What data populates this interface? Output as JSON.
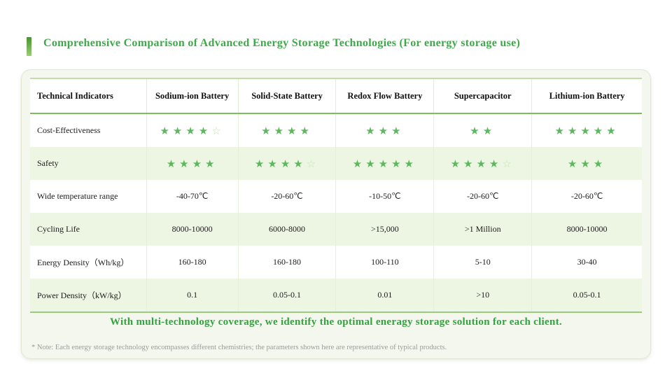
{
  "title": "Comprehensive Comparison of Advanced Energy Storage Technologies (For energy storage use)",
  "table": {
    "columns": [
      "Technical Indicators",
      "Sodium-ion Battery",
      "Solid-State Battery",
      "Redox Flow Battery",
      "Supercapacitor",
      "Lithium-ion Battery"
    ],
    "rows": [
      {
        "label": "Cost-Effectiveness",
        "type": "stars",
        "stars": [
          [
            4,
            1
          ],
          [
            4,
            0
          ],
          [
            3,
            0
          ],
          [
            2,
            0
          ],
          [
            5,
            0
          ]
        ]
      },
      {
        "label": "Safety",
        "type": "stars",
        "stars": [
          [
            4,
            0
          ],
          [
            4,
            1
          ],
          [
            5,
            0
          ],
          [
            4,
            1
          ],
          [
            3,
            0
          ]
        ]
      },
      {
        "label": "Wide temperature range",
        "type": "text",
        "values": [
          "-40-70℃",
          "-20-60℃",
          "-10-50℃",
          "-20-60℃",
          "-20-60℃"
        ]
      },
      {
        "label": "Cycling Life",
        "type": "text",
        "values": [
          "8000-10000",
          "6000-8000",
          ">15,000",
          ">1 Million",
          "8000-10000"
        ]
      },
      {
        "label": "Energy Density（Wh/kg）",
        "type": "text",
        "values": [
          "160-180",
          "160-180",
          "100-110",
          "5-10",
          "30-40"
        ]
      },
      {
        "label": "Power Density（kW/kg）",
        "type": "text",
        "values": [
          "0.1",
          "0.05-0.1",
          "0.01",
          ">10",
          "0.05-0.1"
        ]
      }
    ]
  },
  "tagline": "With multi-technology coverage, we identify the optimal eneragy storage solution for each client.",
  "note": "* Note: Each energy storage technology encompasses different chemistries; the parameters shown here are representative of typical products.",
  "icons": {
    "star_filled": "★",
    "star_empty": "☆"
  },
  "colors": {
    "accent_green": "#3cab47",
    "star_green": "#5cb85c",
    "star_empty": "#c9e4b4",
    "row_shade": "#edf6e3",
    "card_bg": "#f4f7ee"
  }
}
